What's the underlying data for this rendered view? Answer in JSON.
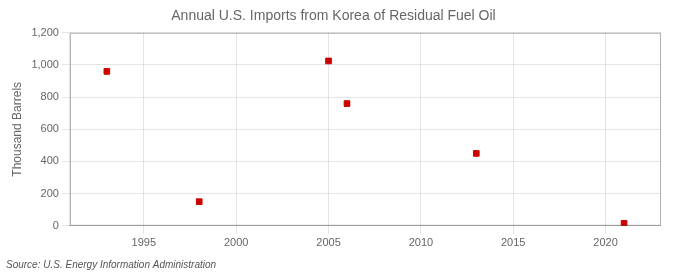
{
  "chart_data": {
    "type": "scatter",
    "title": "Annual U.S. Imports from Korea of Residual Fuel Oil",
    "ylabel": "Thousand Barrels",
    "source": "Source: U.S. Energy Information Administration",
    "x": [
      1993,
      1998,
      2005,
      2006,
      2013,
      2021
    ],
    "values": [
      960,
      150,
      1025,
      760,
      450,
      15
    ],
    "color": "#cc0000",
    "marker": "square",
    "xlim": [
      1991,
      2023
    ],
    "xticks": [
      1995,
      2000,
      2005,
      2010,
      2015,
      2020
    ],
    "ylim": [
      0,
      1200
    ],
    "yticks": [
      0,
      200,
      400,
      600,
      800,
      {
        "value": 1000,
        "label": "1,000"
      },
      {
        "value": 1200,
        "label": "1,200"
      }
    ],
    "grid": true
  }
}
